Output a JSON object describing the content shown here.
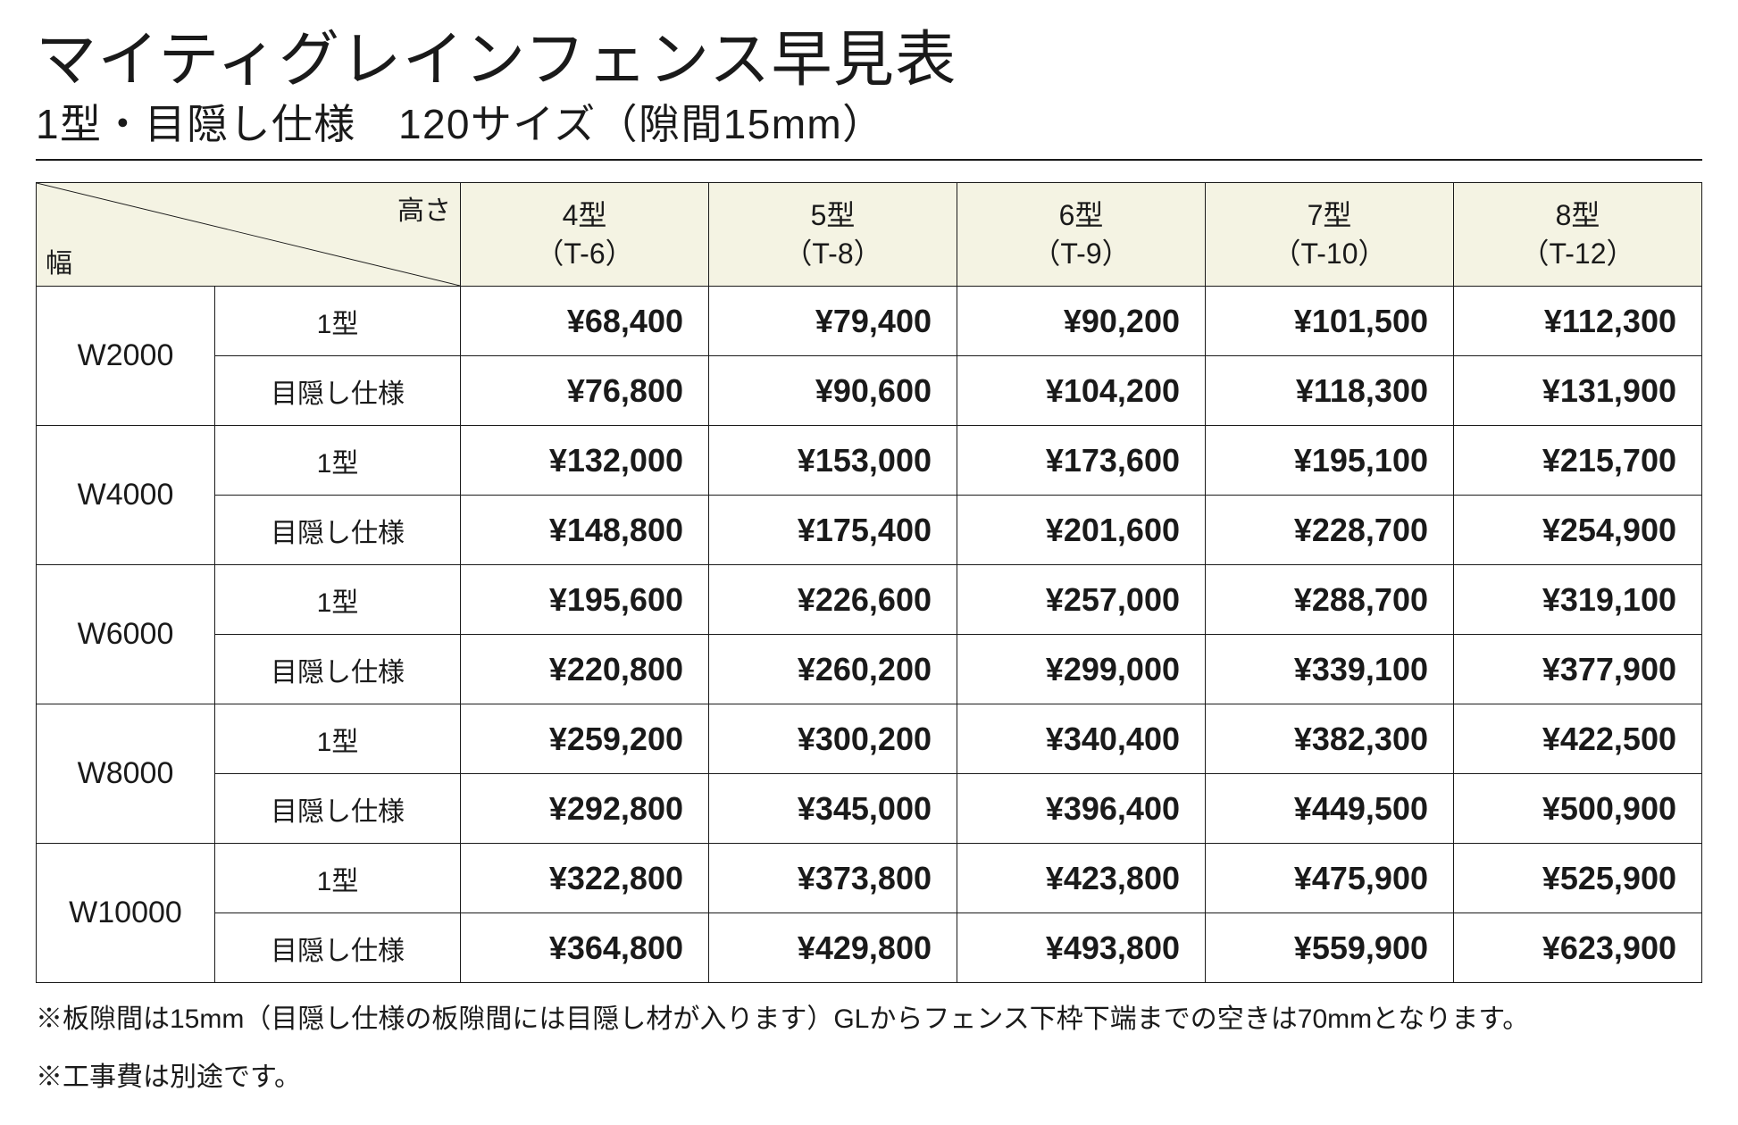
{
  "title": "マイティグレインフェンス早見表",
  "subtitle": "1型・目隠し仕様　120サイズ（隙間15mm）",
  "corner": {
    "top": "高さ",
    "bottom": "幅"
  },
  "columns": [
    {
      "line1": "4型",
      "line2": "（T-6）"
    },
    {
      "line1": "5型",
      "line2": "（T-8）"
    },
    {
      "line1": "6型",
      "line2": "（T-9）"
    },
    {
      "line1": "7型",
      "line2": "（T-10）"
    },
    {
      "line1": "8型",
      "line2": "（T-12）"
    }
  ],
  "widths": [
    {
      "label": "W2000",
      "variants": [
        {
          "label": "1型",
          "prices": [
            "¥68,400",
            "¥79,400",
            "¥90,200",
            "¥101,500",
            "¥112,300"
          ]
        },
        {
          "label": "目隠し仕様",
          "prices": [
            "¥76,800",
            "¥90,600",
            "¥104,200",
            "¥118,300",
            "¥131,900"
          ]
        }
      ]
    },
    {
      "label": "W4000",
      "variants": [
        {
          "label": "1型",
          "prices": [
            "¥132,000",
            "¥153,000",
            "¥173,600",
            "¥195,100",
            "¥215,700"
          ]
        },
        {
          "label": "目隠し仕様",
          "prices": [
            "¥148,800",
            "¥175,400",
            "¥201,600",
            "¥228,700",
            "¥254,900"
          ]
        }
      ]
    },
    {
      "label": "W6000",
      "variants": [
        {
          "label": "1型",
          "prices": [
            "¥195,600",
            "¥226,600",
            "¥257,000",
            "¥288,700",
            "¥319,100"
          ]
        },
        {
          "label": "目隠し仕様",
          "prices": [
            "¥220,800",
            "¥260,200",
            "¥299,000",
            "¥339,100",
            "¥377,900"
          ]
        }
      ]
    },
    {
      "label": "W8000",
      "variants": [
        {
          "label": "1型",
          "prices": [
            "¥259,200",
            "¥300,200",
            "¥340,400",
            "¥382,300",
            "¥422,500"
          ]
        },
        {
          "label": "目隠し仕様",
          "prices": [
            "¥292,800",
            "¥345,000",
            "¥396,400",
            "¥449,500",
            "¥500,900"
          ]
        }
      ]
    },
    {
      "label": "W10000",
      "variants": [
        {
          "label": "1型",
          "prices": [
            "¥322,800",
            "¥373,800",
            "¥423,800",
            "¥475,900",
            "¥525,900"
          ]
        },
        {
          "label": "目隠し仕様",
          "prices": [
            "¥364,800",
            "¥429,800",
            "¥493,800",
            "¥559,900",
            "¥623,900"
          ]
        }
      ]
    }
  ],
  "footnotes": [
    "※板隙間は15mm（目隠し仕様の板隙間には目隠し材が入ります）GLからフェンス下枠下端までの空きは70mmとなります。",
    "※工事費は別途です。"
  ],
  "style": {
    "header_bg": "#f4f3e3",
    "border_color": "#1a1a1a",
    "text_color": "#1a1a1a",
    "title_fontsize": 68,
    "subtitle_fontsize": 46,
    "price_fontsize": 36,
    "price_fontweight": 700,
    "label_fontsize": 30,
    "footnote_fontsize": 30
  }
}
